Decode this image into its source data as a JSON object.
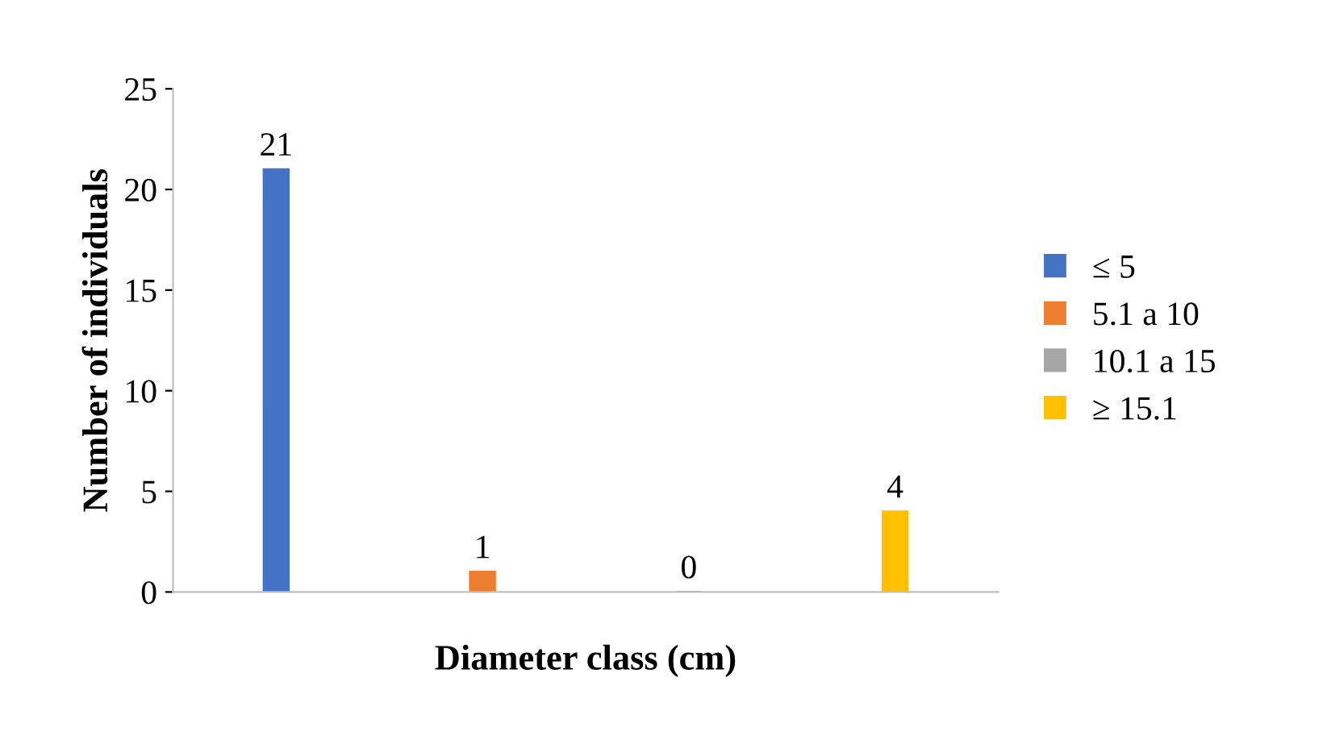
{
  "chart_data": {
    "type": "bar",
    "xlabel": "Diameter class (cm)",
    "ylabel": "Number of individuals",
    "categories": [
      null,
      null,
      null,
      null
    ],
    "series": [
      {
        "name": "≤ 5",
        "color": "#4472c4",
        "values": [
          21,
          null,
          null,
          null
        ]
      },
      {
        "name": "5.1 a 10",
        "color": "#ed7d31",
        "values": [
          null,
          1,
          null,
          null
        ]
      },
      {
        "name": "10.1 a 15",
        "color": "#a5a5a5",
        "values": [
          null,
          null,
          0,
          null
        ]
      },
      {
        "name": "≥ 15.1",
        "color": "#ffc000",
        "values": [
          null,
          null,
          null,
          4
        ]
      }
    ],
    "ylim": [
      0,
      25
    ],
    "yticks": [
      0,
      5,
      10,
      15,
      20,
      25
    ],
    "data_labels": true,
    "legend": "right",
    "grid": false
  }
}
